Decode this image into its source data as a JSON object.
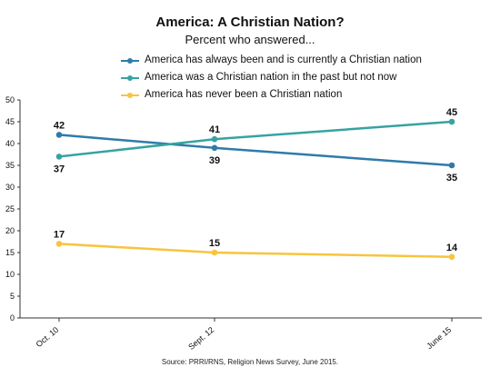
{
  "chart_data": {
    "type": "line",
    "title": "America: A Christian Nation?",
    "subtitle": "Percent who answered...",
    "categories": [
      "Oct. 10",
      "Sept. 12",
      "June 15"
    ],
    "ylim": [
      0,
      50
    ],
    "yticks": [
      0,
      5,
      10,
      15,
      20,
      25,
      30,
      35,
      40,
      45,
      50
    ],
    "grid": false,
    "legend_position": "top",
    "series": [
      {
        "name": "America has always been and is currently a Christian nation",
        "values": [
          42,
          39,
          35
        ],
        "color": "#2f7ba8",
        "labels_below": [
          false,
          true,
          true
        ]
      },
      {
        "name": "America was a Christian nation in the past but not now",
        "values": [
          37,
          41,
          45
        ],
        "color": "#36a3a1",
        "labels_below": [
          true,
          false,
          false
        ]
      },
      {
        "name": "America has never been a Christian nation",
        "values": [
          17,
          15,
          14
        ],
        "color": "#f8c43e",
        "labels_below": [
          false,
          false,
          false
        ]
      }
    ],
    "source": "Source: PRRI/RNS, Religion News Survey, June 2015."
  }
}
